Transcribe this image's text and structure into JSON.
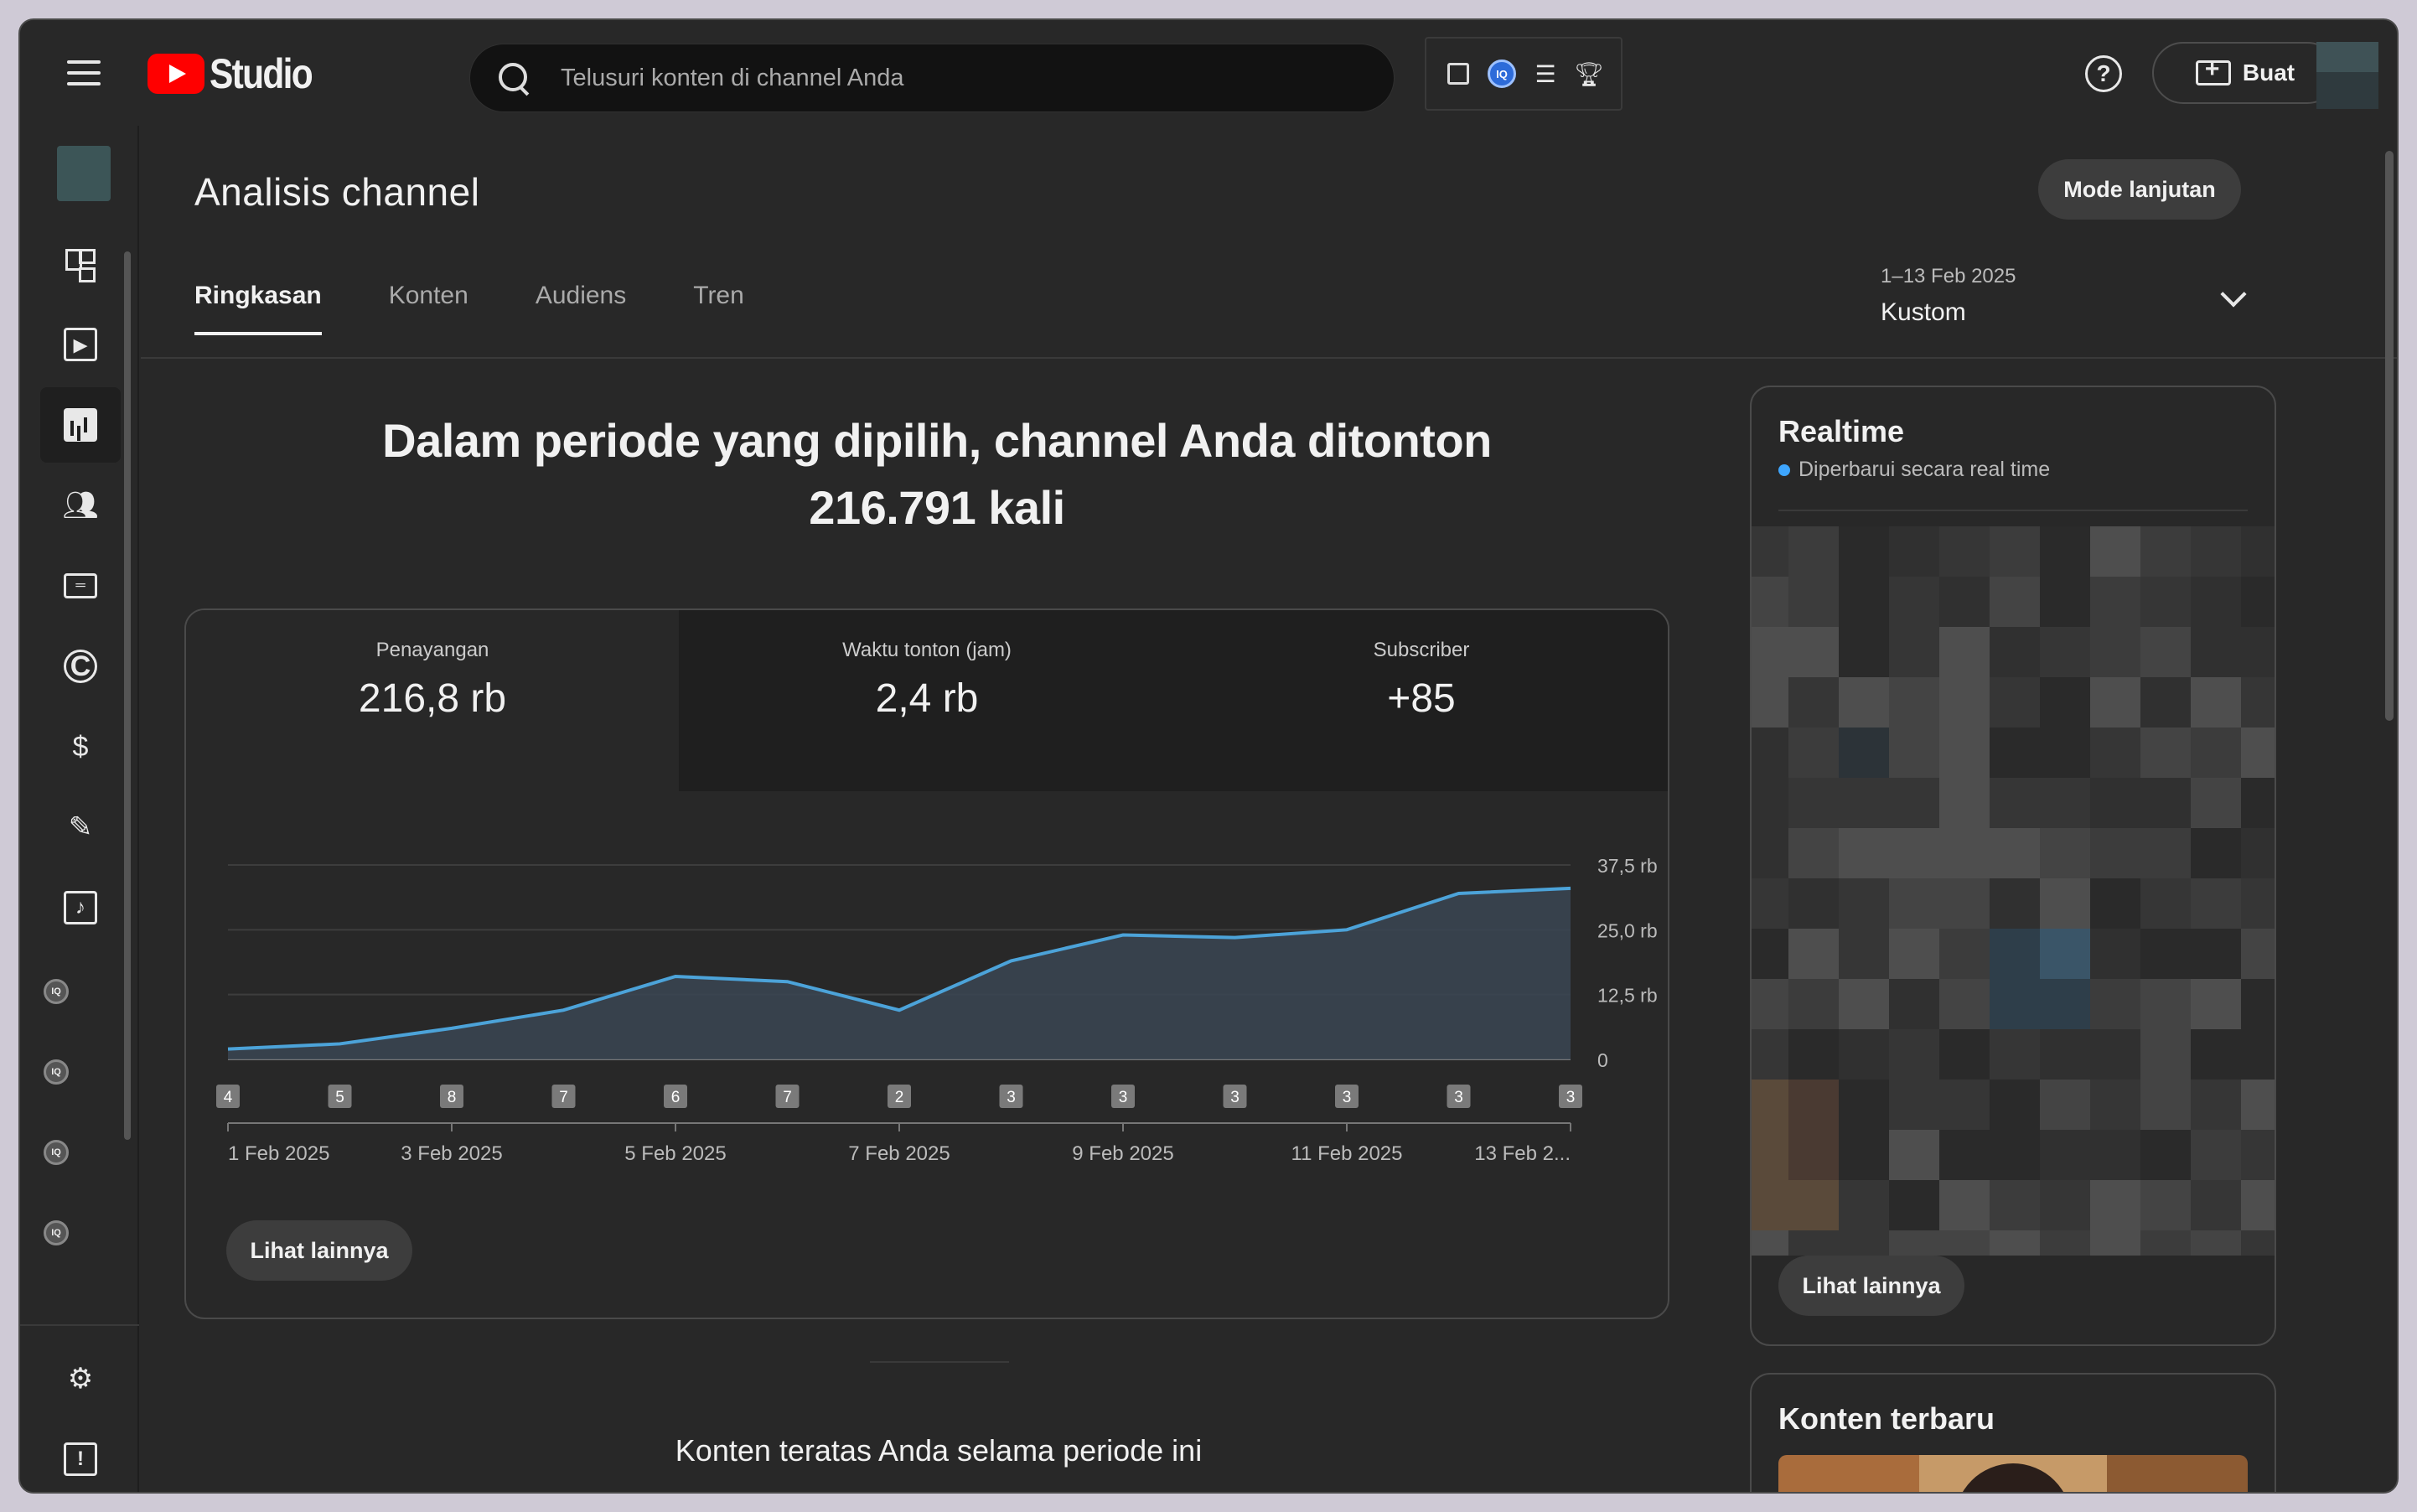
{
  "header": {
    "logo_text": "Studio",
    "search_placeholder": "Telusuri konten di channel Anda",
    "extensions": [
      "analytics-bar-icon",
      "vidiq-icon",
      "list-icon",
      "trophy-icon"
    ],
    "vidiq_label": "IQ",
    "help_label": "?",
    "create_label": "Buat"
  },
  "sidebar": {
    "items": [
      "dashboard",
      "content",
      "analytics",
      "community",
      "subtitles",
      "copyright",
      "earn",
      "customization",
      "audio-library"
    ],
    "active": "analytics",
    "iq_label": "IQ",
    "copyright_glyph": "C",
    "earn_glyph": "$",
    "feedback_glyph": "!"
  },
  "page": {
    "title": "Analisis channel",
    "mode_button": "Mode lanjutan",
    "tabs": [
      {
        "label": "Ringkasan",
        "active": true
      },
      {
        "label": "Konten",
        "active": false
      },
      {
        "label": "Audiens",
        "active": false
      },
      {
        "label": "Tren",
        "active": false
      }
    ],
    "date_range": {
      "period": "1–13 Feb 2025",
      "label": "Kustom"
    }
  },
  "summary": {
    "headline_line1": "Dalam periode yang dipilih, channel Anda ditonton",
    "headline_line2": "216.791 kali",
    "metrics": [
      {
        "label": "Penayangan",
        "value": "216,8 rb"
      },
      {
        "label": "Waktu tonton (jam)",
        "value": "2,4 rb"
      },
      {
        "label": "Subscriber",
        "value": "+85"
      }
    ],
    "more_button": "Lihat lainnya"
  },
  "chart_data": {
    "type": "area",
    "x": [
      "1 Feb 2025",
      "2 Feb 2025",
      "3 Feb 2025",
      "4 Feb 2025",
      "5 Feb 2025",
      "6 Feb 2025",
      "7 Feb 2025",
      "8 Feb 2025",
      "9 Feb 2025",
      "10 Feb 2025",
      "11 Feb 2025",
      "12 Feb 2025",
      "13 Feb 2025"
    ],
    "x_tick_labels": [
      "1 Feb 2025",
      "3 Feb 2025",
      "5 Feb 2025",
      "7 Feb 2025",
      "9 Feb 2025",
      "11 Feb 2025",
      "13 Feb 2..."
    ],
    "x_tick_indices": [
      0,
      2,
      4,
      6,
      8,
      10,
      12
    ],
    "series": [
      {
        "values": [
          2000,
          3000,
          6000,
          9500,
          16000,
          15000,
          9500,
          19000,
          24000,
          23500,
          25000,
          32000,
          33000
        ],
        "color": "#4ca3d9"
      }
    ],
    "y_ticks": [
      0,
      12500,
      25000,
      37500
    ],
    "y_tick_labels": [
      "0",
      "12,5 rb",
      "25,0 rb",
      "37,5 rb"
    ],
    "ylim": [
      0,
      37500
    ],
    "markers": [
      "4",
      "5",
      "8",
      "7",
      "6",
      "7",
      "2",
      "3",
      "3",
      "3",
      "3",
      "3",
      "3"
    ],
    "grid": true
  },
  "realtime": {
    "title": "Realtime",
    "subtitle": "Diperbarui secara real time",
    "more_button": "Lihat lainnya"
  },
  "latest": {
    "title": "Konten terbaru"
  },
  "top_content_heading": "Konten teratas Anda selama periode ini",
  "colors": {
    "background": "#282828",
    "accent_line": "#4ca3d9",
    "brand_red": "#ff0000",
    "realtime_dot": "#3ea6ff"
  }
}
